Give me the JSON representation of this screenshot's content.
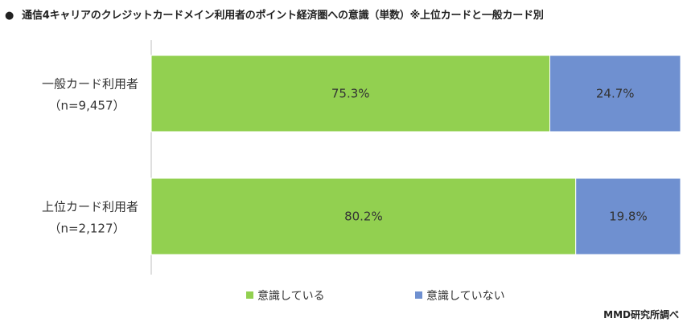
{
  "title": "通信4キャリアのクレジットカードメイン利用者のポイント経済圏への意識（単数）※上位カードと一般カード別",
  "title_bullet": "●",
  "source": "MMD研究所調べ",
  "chart_data": {
    "type": "bar",
    "orientation": "horizontal",
    "stacked": true,
    "percent_stacked": true,
    "title": "通信4キャリアのクレジットカードメイン利用者のポイント経済圏への意識（単数）※上位カードと一般カード別",
    "categories": [
      {
        "name": "一般カード利用者",
        "n": "（n=9,457）"
      },
      {
        "name": "上位カード利用者",
        "n": "（n=2,127）"
      }
    ],
    "series": [
      {
        "name": "意識している",
        "values": [
          75.3,
          80.2
        ],
        "labels": [
          "75.3%",
          "80.2%"
        ],
        "color": "#92d050"
      },
      {
        "name": "意識していない",
        "values": [
          24.7,
          19.8
        ],
        "labels": [
          "24.7%",
          "19.8%"
        ],
        "color": "#6f90d0"
      }
    ],
    "xlim": [
      0,
      100
    ],
    "grid": false,
    "legend": "bottom-center"
  }
}
